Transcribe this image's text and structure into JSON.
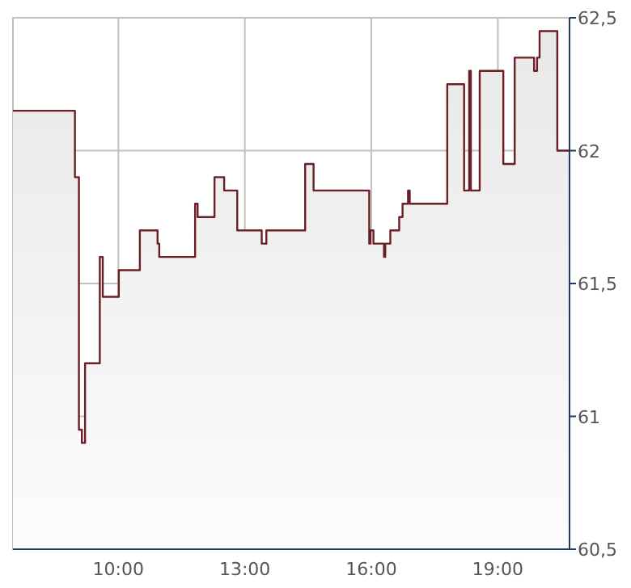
{
  "chart_data": {
    "type": "area",
    "x": [
      7.5,
      8.97,
      8.97,
      9.065,
      9.065,
      9.135,
      9.135,
      9.21,
      9.21,
      9.56,
      9.56,
      9.63,
      9.63,
      10.01,
      10.01,
      10.51,
      10.51,
      10.93,
      10.93,
      10.97,
      10.97,
      11.82,
      11.82,
      11.88,
      11.88,
      12.28,
      12.28,
      12.51,
      12.51,
      12.82,
      12.82,
      13.4,
      13.4,
      13.51,
      13.51,
      14.43,
      14.43,
      14.63,
      14.63,
      15.95,
      15.95,
      15.98,
      15.98,
      16.05,
      16.05,
      16.3,
      16.3,
      16.33,
      16.33,
      16.45,
      16.45,
      16.66,
      16.66,
      16.74,
      16.74,
      16.87,
      16.87,
      16.91,
      16.91,
      17.8,
      17.8,
      18.2,
      18.2,
      18.32,
      18.32,
      18.36,
      18.36,
      18.57,
      18.57,
      19.13,
      19.13,
      19.4,
      19.4,
      19.86,
      19.86,
      19.93,
      19.93,
      19.99,
      19.99,
      20.41,
      20.41,
      20.7
    ],
    "series": [
      {
        "color": "#6b1f24",
        "values": [
          62.15,
          62.15,
          61.9,
          61.9,
          60.95,
          60.95,
          60.9,
          60.9,
          61.2,
          61.2,
          61.6,
          61.6,
          61.45,
          61.45,
          61.55,
          61.55,
          61.7,
          61.7,
          61.65,
          61.65,
          61.6,
          61.6,
          61.8,
          61.8,
          61.75,
          61.75,
          61.9,
          61.9,
          61.85,
          61.85,
          61.7,
          61.7,
          61.65,
          61.65,
          61.7,
          61.7,
          61.95,
          61.95,
          61.85,
          61.85,
          61.65,
          61.65,
          61.7,
          61.7,
          61.65,
          61.65,
          61.6,
          61.6,
          61.65,
          61.65,
          61.7,
          61.7,
          61.75,
          61.75,
          61.8,
          61.8,
          61.85,
          61.85,
          61.8,
          61.8,
          62.25,
          62.25,
          61.85,
          61.85,
          62.3,
          62.3,
          61.85,
          61.85,
          62.3,
          62.3,
          61.95,
          61.95,
          62.35,
          62.35,
          62.3,
          62.3,
          62.35,
          62.35,
          62.45,
          62.45,
          62.0,
          62.0
        ]
      }
    ],
    "xlim": [
      7.5,
      20.7
    ],
    "xticks": [
      {
        "value": 10,
        "label": "10:00"
      },
      {
        "value": 13,
        "label": "13:00"
      },
      {
        "value": 16,
        "label": "16:00"
      },
      {
        "value": 19,
        "label": "19:00"
      }
    ],
    "ylim": [
      60.5,
      62.5
    ],
    "yticks": [
      {
        "value": 60.5,
        "label": "60,5"
      },
      {
        "value": 61,
        "label": "61"
      },
      {
        "value": 61.5,
        "label": "61,5"
      },
      {
        "value": 62,
        "label": "62"
      },
      {
        "value": 62.5,
        "label": "62,5"
      }
    ],
    "grid": true
  }
}
